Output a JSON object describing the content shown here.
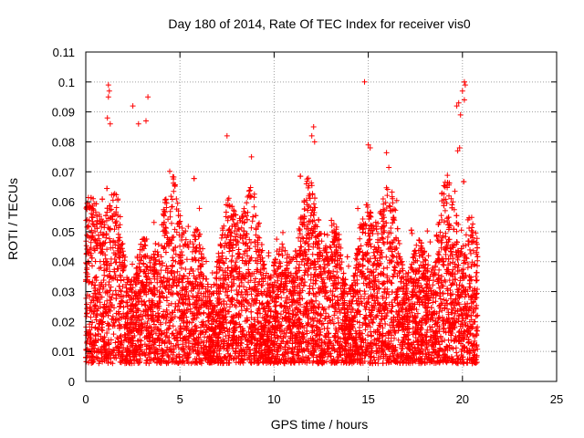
{
  "chart_data": {
    "type": "scatter",
    "title": "Day 180 of 2014, Rate Of TEC Index for receiver vis0",
    "xlabel": "GPS time / hours",
    "ylabel": "ROTI / TECUs",
    "xlim": [
      0,
      25
    ],
    "ylim": [
      0,
      0.11
    ],
    "xticks": [
      0,
      5,
      10,
      15,
      20,
      25
    ],
    "yticks": [
      0,
      0.01,
      0.02,
      0.03,
      0.04,
      0.05,
      0.06,
      0.07,
      0.08,
      0.09,
      0.1,
      0.11
    ],
    "xtick_labels": [
      "0",
      "5",
      "10",
      "15",
      "20",
      "25"
    ],
    "ytick_labels": [
      "0",
      "0.01",
      "0.02",
      "0.03",
      "0.04",
      "0.05",
      "0.06",
      "0.07",
      "0.08",
      "0.09",
      "0.1",
      "0.11"
    ],
    "grid": true,
    "marker": "+",
    "color": "#ff0000",
    "x_range_observed": [
      0.0,
      20.8
    ],
    "y_typical_range": [
      0.005,
      0.06
    ],
    "outliers": [
      {
        "x": 1.2,
        "y": 0.099
      },
      {
        "x": 1.25,
        "y": 0.097
      },
      {
        "x": 1.2,
        "y": 0.095
      },
      {
        "x": 1.15,
        "y": 0.088
      },
      {
        "x": 1.3,
        "y": 0.086
      },
      {
        "x": 2.5,
        "y": 0.092
      },
      {
        "x": 3.3,
        "y": 0.095
      },
      {
        "x": 2.8,
        "y": 0.086
      },
      {
        "x": 3.2,
        "y": 0.087
      },
      {
        "x": 7.5,
        "y": 0.082
      },
      {
        "x": 8.8,
        "y": 0.075
      },
      {
        "x": 12.1,
        "y": 0.085
      },
      {
        "x": 12.0,
        "y": 0.082
      },
      {
        "x": 12.15,
        "y": 0.08
      },
      {
        "x": 14.8,
        "y": 0.1
      },
      {
        "x": 15.0,
        "y": 0.079
      },
      {
        "x": 15.1,
        "y": 0.078
      },
      {
        "x": 19.8,
        "y": 0.093
      },
      {
        "x": 19.7,
        "y": 0.092
      },
      {
        "x": 19.9,
        "y": 0.089
      },
      {
        "x": 20.1,
        "y": 0.1
      },
      {
        "x": 20.15,
        "y": 0.099
      },
      {
        "x": 20.0,
        "y": 0.097
      },
      {
        "x": 20.1,
        "y": 0.094
      },
      {
        "x": 19.75,
        "y": 0.077
      },
      {
        "x": 19.85,
        "y": 0.078
      }
    ]
  }
}
